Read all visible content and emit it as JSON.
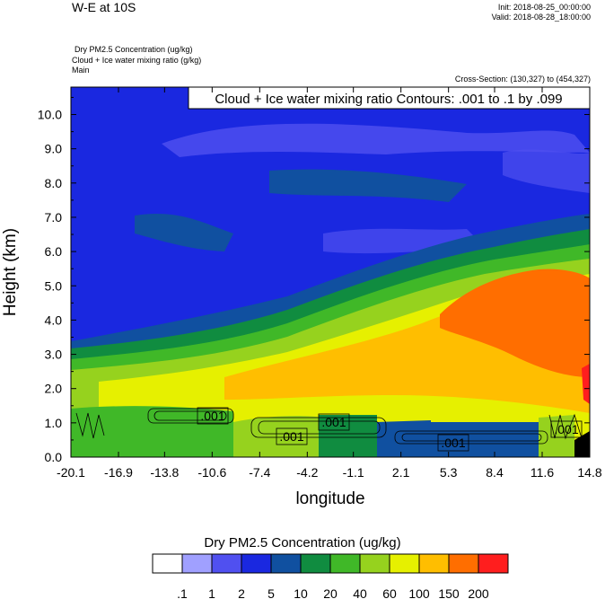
{
  "header": {
    "title": "W-E at 10S",
    "init": "Init: 2018-08-25_00:00:00",
    "valid": "Valid: 2018-08-28_18:00:00",
    "field1": "Dry PM2.5 Concentration    (ug/kg)",
    "field2": "Cloud + Ice water mixing ratio    (g/kg)",
    "field3": "Main",
    "cross_section": "Cross-Section: (130,327) to (454,327)"
  },
  "chart_data": {
    "type": "heatmap",
    "title": "Cloud + Ice water mixing ratio Contours: .001 to .1 by .099",
    "xlabel": "longitude",
    "ylabel": "Height (km)",
    "xlim": [
      -20.1,
      14.8
    ],
    "ylim": [
      0,
      10.8
    ],
    "x_ticks": [
      "-20.1",
      "-16.9",
      "-13.8",
      "-10.6",
      "-7.4",
      "-4.2",
      "-1.1",
      "2.1",
      "5.3",
      "8.4",
      "11.6",
      "14.8"
    ],
    "y_ticks": [
      "0.0",
      "1.0",
      "2.0",
      "3.0",
      "4.0",
      "5.0",
      "6.0",
      "7.0",
      "8.0",
      "9.0",
      "10.0"
    ],
    "colorbar": {
      "title": "Dry PM2.5 Concentration  (ug/kg)",
      "labels": [
        ".1",
        "1",
        "2",
        "5",
        "10",
        "20",
        "40",
        "60",
        "100",
        "150",
        "200"
      ],
      "colors": [
        "#ffffff",
        "#a0a0ff",
        "#5050f0",
        "#1a28e0",
        "#1050a0",
        "#108c40",
        "#40b828",
        "#96d21e",
        "#e6f000",
        "#ffbe00",
        "#ff6e00",
        "#ff1e1e"
      ]
    },
    "contour_labels": [
      ".001",
      ".001",
      ".001",
      ".001",
      ".001"
    ],
    "contour_levels": [
      0.001,
      0.1
    ]
  }
}
